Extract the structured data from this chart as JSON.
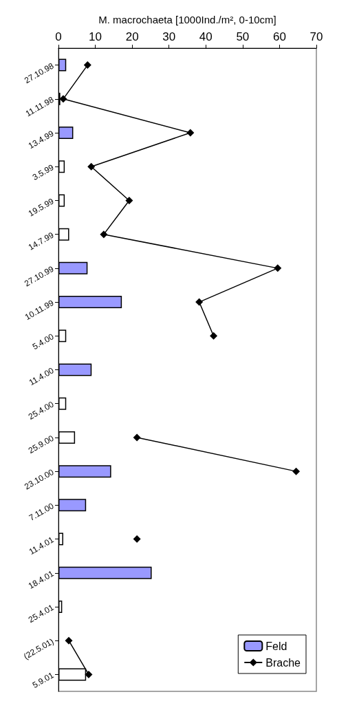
{
  "chart_data": {
    "type": "bar",
    "orientation": "horizontal",
    "xlabel": "M. macrochaeta [1000Ind./m², 0-10cm]",
    "categories": [
      "27.10.98",
      "11.11.98",
      "13.4.99",
      "3.5.99",
      "19.5.99",
      "14.7.99",
      "27.10.99",
      "10.11.99",
      "5.4.00",
      "11.4.00",
      "25.4.00",
      "25.9.00",
      "23.10.00",
      "7.11.00",
      "11.4.01",
      "18.4.01",
      "25.4.01",
      "(22.5.01)",
      "5.9.01"
    ],
    "series": [
      {
        "name": "Feld",
        "color": "#9999ff",
        "colors": [
          "#9999ff",
          "#ffffff",
          "#9999ff",
          "#ffffff",
          "#ffffff",
          "#ffffff",
          "#9999ff",
          "#9999ff",
          "#ffffff",
          "#9999ff",
          "#ffffff",
          "#ffffff",
          "#9999ff",
          "#9999ff",
          "#ffffff",
          "#9999ff",
          "#ffffff",
          "#ffffff",
          "#ffffff"
        ],
        "values": [
          2.1,
          0.5,
          4.0,
          1.7,
          1.7,
          2.9,
          7.9,
          17.2,
          2.1,
          9.0,
          2.1,
          4.5,
          14.3,
          7.5,
          1.3,
          25.3,
          1.0,
          null,
          7.5
        ]
      },
      {
        "name": "Brache",
        "type": "line",
        "color": "#000000",
        "marker": "diamond",
        "values": [
          7.9,
          1.3,
          35.8,
          8.9,
          19.2,
          12.3,
          59.5,
          38.2,
          42.1,
          null,
          null,
          21.3,
          64.5,
          null,
          21.3,
          null,
          null,
          2.8,
          8.2
        ]
      }
    ],
    "xlim": [
      0,
      70
    ],
    "xticks": [
      0,
      10,
      20,
      30,
      40,
      50,
      60,
      70
    ],
    "grid": false,
    "legend": "bottom right"
  }
}
